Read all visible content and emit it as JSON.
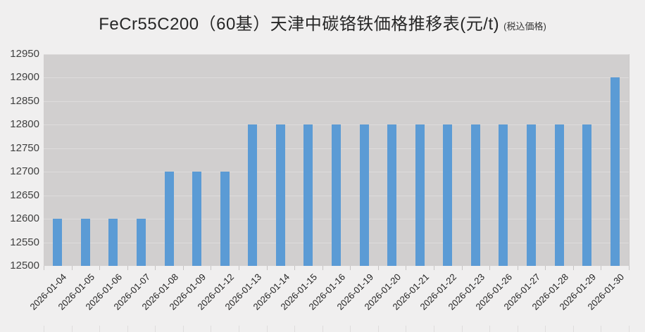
{
  "title": {
    "main": "FeCr55C200（60基）天津中碳铬铁価格推移表(元/t)",
    "suffix": "(税込価格)"
  },
  "chart_data": {
    "type": "bar",
    "title": "FeCr55C200（60基）天津中碳铬铁価格推移表(元/t) (税込価格)",
    "categories": [
      "2026-01-04",
      "2026-01-05",
      "2026-01-06",
      "2026-01-07",
      "2026-01-08",
      "2026-01-09",
      "2026-01-12",
      "2026-01-13",
      "2026-01-14",
      "2026-01-15",
      "2026-01-16",
      "2026-01-19",
      "2026-01-20",
      "2026-01-21",
      "2026-01-22",
      "2026-01-23",
      "2026-01-26",
      "2026-01-27",
      "2026-01-28",
      "2026-01-29",
      "2026-01-30"
    ],
    "values": [
      12600,
      12600,
      12600,
      12600,
      12700,
      12700,
      12700,
      12800,
      12800,
      12800,
      12800,
      12800,
      12800,
      12800,
      12800,
      12800,
      12800,
      12800,
      12800,
      12800,
      12900
    ],
    "xlabel": "",
    "ylabel": "",
    "ylim": [
      12500,
      12950
    ],
    "ytick_step": 50,
    "yticks": [
      12500,
      12550,
      12600,
      12650,
      12700,
      12750,
      12800,
      12850,
      12900,
      12950
    ],
    "grid": true,
    "legend": "none",
    "colors": {
      "bar": "#5b9bd5",
      "plot_bg": "#d1cfcf",
      "grid": "#dedcdc",
      "page_bg": "#f0efef",
      "axis_text": "#404040",
      "category_text": "#1f1f1f",
      "title_text": "#262626"
    }
  }
}
